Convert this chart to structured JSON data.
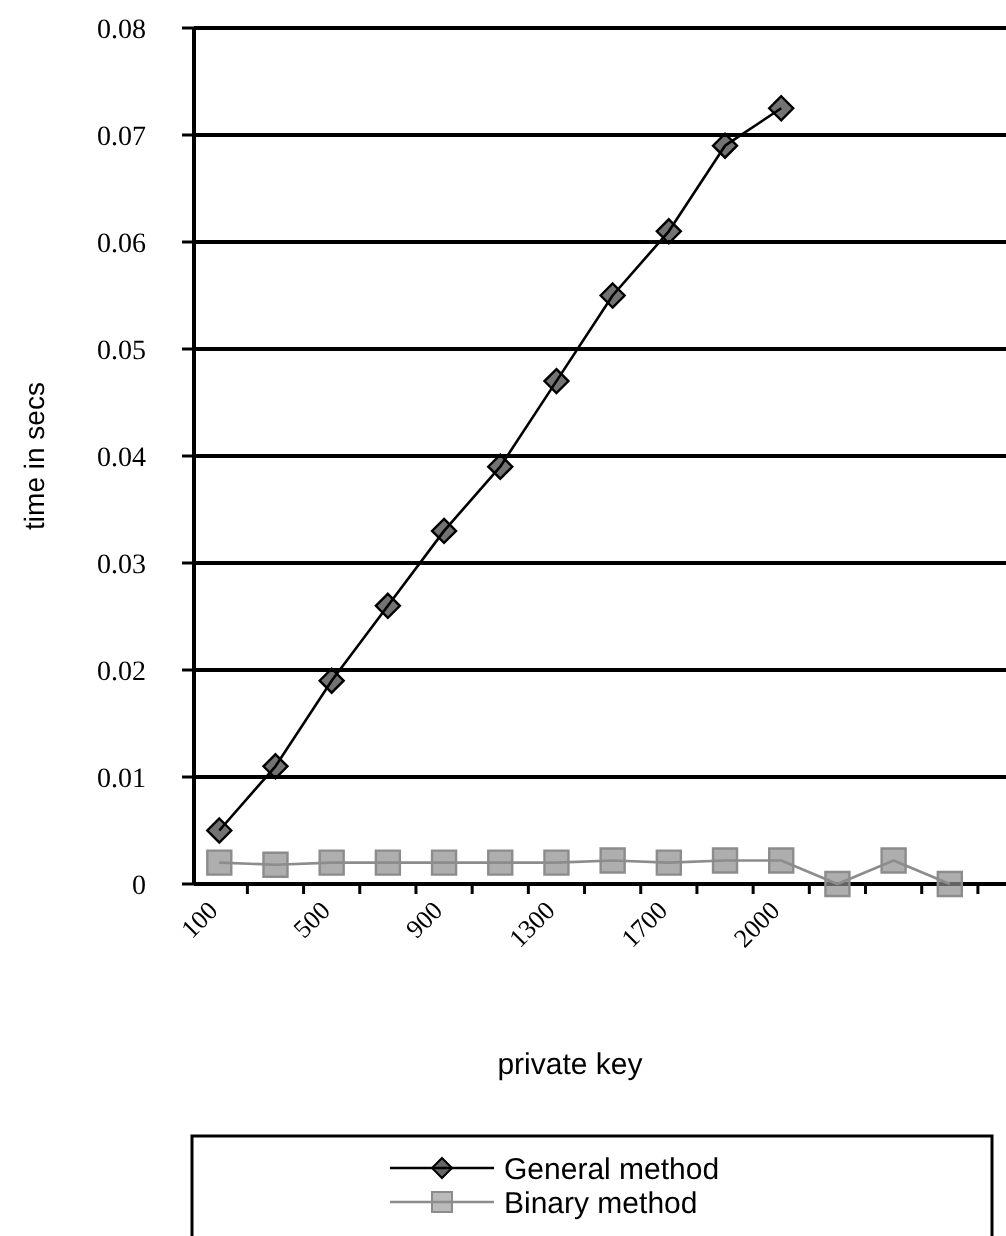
{
  "chart_data": {
    "type": "line",
    "xlabel": "private key",
    "ylabel": "time in secs",
    "categories": [
      "100",
      null,
      "500",
      null,
      "900",
      null,
      "1300",
      null,
      "1700",
      null,
      "2000",
      null,
      null,
      null
    ],
    "series": [
      {
        "name": "General method",
        "color": "#000000",
        "marker": "diamond",
        "values": [
          0.005,
          0.011,
          0.019,
          0.026,
          0.033,
          0.039,
          0.047,
          0.055,
          0.061,
          0.069,
          0.0725,
          null,
          null,
          null
        ]
      },
      {
        "name": "Binary method",
        "color": "#8c8c8c",
        "marker": "square",
        "values": [
          0.002,
          0.0018,
          0.002,
          0.002,
          0.002,
          0.002,
          0.002,
          0.0022,
          0.002,
          0.0022,
          0.0022,
          0,
          0.0022,
          0
        ]
      }
    ],
    "ylim": [
      0,
      0.08
    ],
    "yticks": [
      0,
      0.01,
      0.02,
      0.03,
      0.04,
      0.05,
      0.06,
      0.07,
      0.08
    ],
    "grid": "y",
    "legend": "bottom",
    "line_style": "solid"
  }
}
